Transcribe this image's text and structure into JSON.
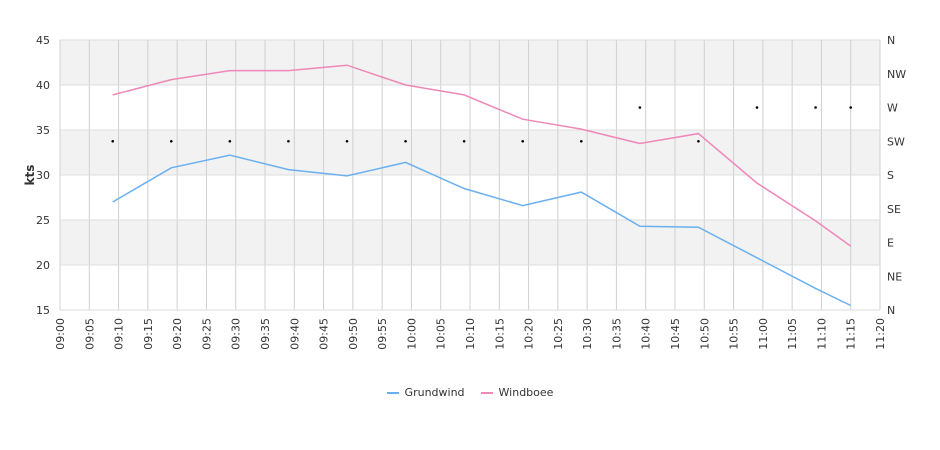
{
  "chart_data": {
    "type": "line",
    "x_labels": [
      "09:00",
      "09:05",
      "09:10",
      "09:15",
      "09:20",
      "09:25",
      "09:30",
      "09:35",
      "09:40",
      "09:45",
      "09:50",
      "09:55",
      "10:00",
      "10:05",
      "10:10",
      "10:15",
      "10:20",
      "10:25",
      "10:30",
      "10:35",
      "10:40",
      "10:45",
      "10:50",
      "10:55",
      "11:00",
      "11:05",
      "11:10",
      "11:15",
      "11:20"
    ],
    "xlim": [
      "09:00",
      "11:20"
    ],
    "ylabel": "kts",
    "ylim": [
      15,
      45
    ],
    "y_ticks": [
      15,
      20,
      25,
      30,
      35,
      40,
      45
    ],
    "direction_axis": {
      "labels": [
        "N",
        "NE",
        "E",
        "SE",
        "S",
        "SW",
        "W",
        "NW",
        "N"
      ],
      "range_degrees": [
        0,
        360
      ]
    },
    "grid": true,
    "legend_position": "bottom",
    "series": [
      {
        "name": "Grundwind",
        "color": "#6ab0f0",
        "x": [
          "09:09",
          "09:19",
          "09:29",
          "09:39",
          "09:49",
          "09:59",
          "10:09",
          "10:19",
          "10:29",
          "10:39",
          "10:49",
          "10:59",
          "11:09",
          "11:15"
        ],
        "values": [
          27.0,
          30.8,
          32.2,
          30.6,
          29.9,
          31.4,
          28.5,
          26.6,
          28.1,
          24.3,
          24.2,
          20.8,
          17.4,
          15.5
        ]
      },
      {
        "name": "Windboee",
        "color": "#ee88b8",
        "x": [
          "09:09",
          "09:19",
          "09:29",
          "09:39",
          "09:49",
          "09:59",
          "10:09",
          "10:19",
          "10:29",
          "10:39",
          "10:49",
          "10:59",
          "11:09",
          "11:15"
        ],
        "values": [
          38.9,
          40.6,
          41.6,
          41.6,
          42.2,
          40.0,
          38.9,
          36.2,
          35.1,
          33.5,
          34.6,
          29.1,
          24.9,
          22.1
        ]
      }
    ],
    "wind_direction": {
      "x": [
        "09:09",
        "09:19",
        "09:29",
        "09:39",
        "09:49",
        "09:59",
        "10:09",
        "10:19",
        "10:29",
        "10:39",
        "10:49",
        "10:59",
        "11:09",
        "11:15"
      ],
      "degrees": [
        225,
        225,
        225,
        225,
        225,
        225,
        225,
        225,
        225,
        270,
        225,
        270,
        270,
        270
      ]
    }
  }
}
